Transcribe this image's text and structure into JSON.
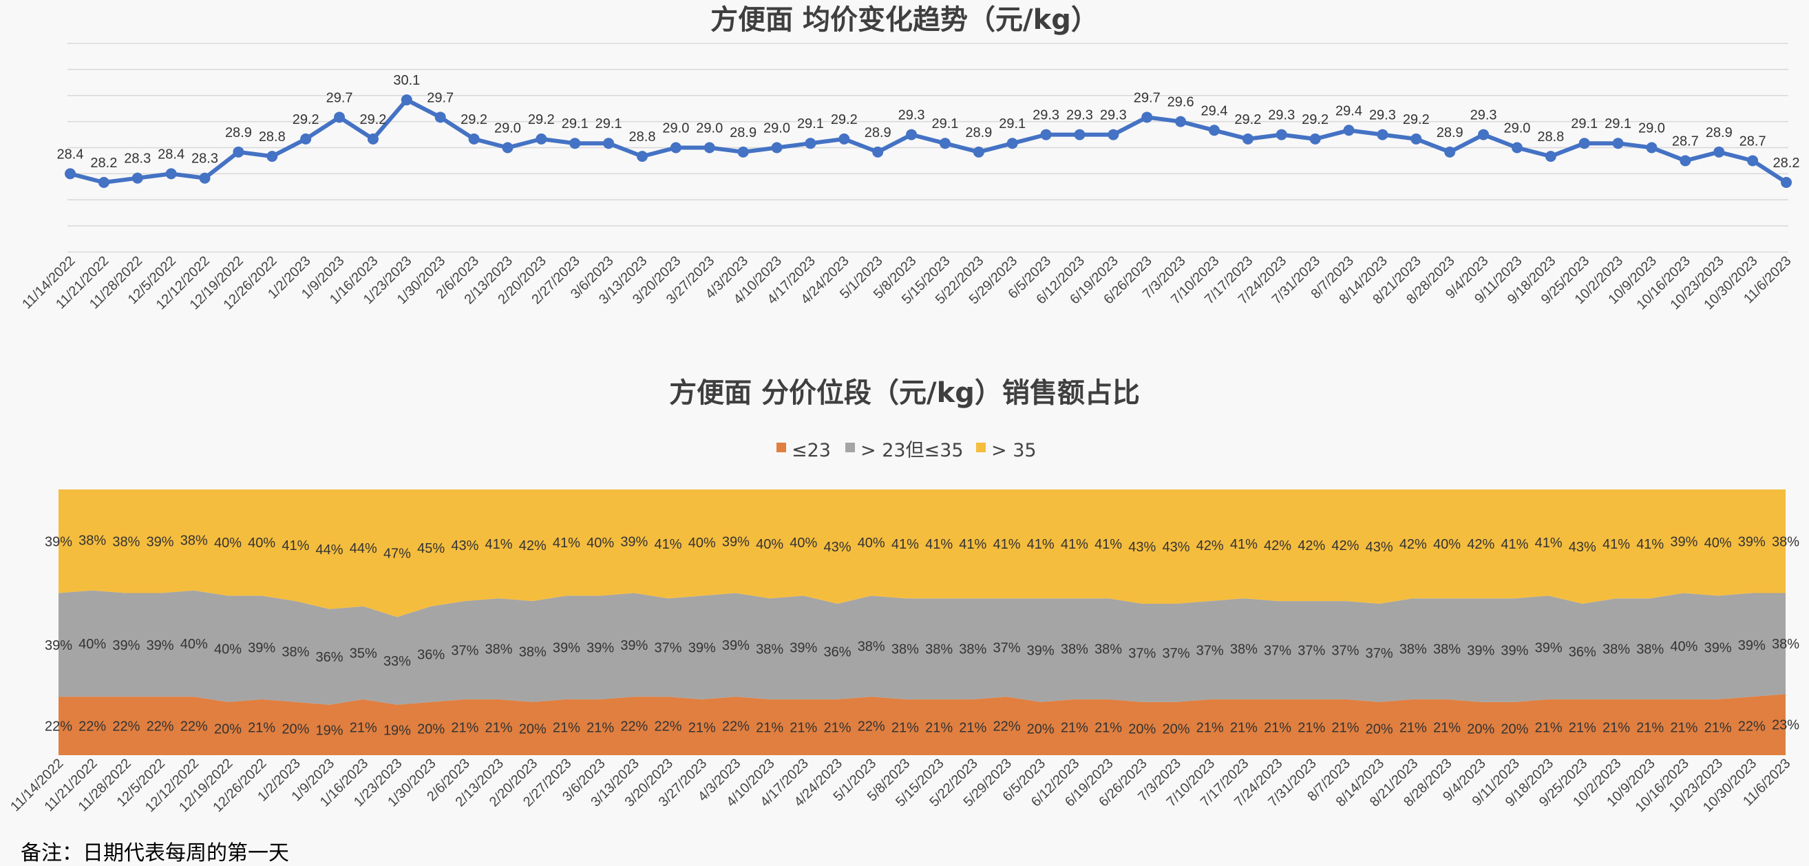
{
  "note": "备注：日期代表每周的第一天",
  "chart_data": [
    {
      "type": "line",
      "title": "方便面 均价变化趋势（元/kg）",
      "x": [
        "11/14/2022",
        "11/21/2022",
        "11/28/2022",
        "12/5/2022",
        "12/12/2022",
        "12/19/2022",
        "12/26/2022",
        "1/2/2023",
        "1/9/2023",
        "1/16/2023",
        "1/23/2023",
        "1/30/2023",
        "2/6/2023",
        "2/13/2023",
        "2/20/2023",
        "2/27/2023",
        "3/6/2023",
        "3/13/2023",
        "3/20/2023",
        "3/27/2023",
        "4/3/2023",
        "4/10/2023",
        "4/17/2023",
        "4/24/2023",
        "5/1/2023",
        "5/8/2023",
        "5/15/2023",
        "5/22/2023",
        "5/29/2023",
        "6/5/2023",
        "6/12/2023",
        "6/19/2023",
        "6/26/2023",
        "7/3/2023",
        "7/10/2023",
        "7/17/2023",
        "7/24/2023",
        "7/31/2023",
        "8/7/2023",
        "8/14/2023",
        "8/21/2023",
        "8/28/2023",
        "9/4/2023",
        "9/11/2023",
        "9/18/2023",
        "9/25/2023",
        "10/2/2023",
        "10/9/2023",
        "10/16/2023",
        "10/23/2023",
        "10/30/2023",
        "11/6/2023"
      ],
      "values": [
        28.4,
        28.2,
        28.3,
        28.4,
        28.3,
        28.9,
        28.8,
        29.2,
        29.7,
        29.2,
        30.1,
        29.7,
        29.2,
        29.0,
        29.2,
        29.1,
        29.1,
        28.8,
        29.0,
        29.0,
        28.9,
        29.0,
        29.1,
        29.2,
        28.9,
        29.3,
        29.1,
        28.9,
        29.1,
        29.3,
        29.3,
        29.3,
        29.7,
        29.6,
        29.4,
        29.2,
        29.3,
        29.2,
        29.4,
        29.3,
        29.2,
        28.9,
        29.3,
        29.0,
        28.8,
        29.1,
        29.1,
        29.0,
        28.7,
        28.9,
        28.7,
        28.2
      ],
      "ylim": [
        26.6,
        31.4
      ],
      "grid": true,
      "color": "#4472c4"
    },
    {
      "type": "area",
      "stacked": "percent",
      "title": "方便面 分价位段（元/kg）销售额占比",
      "legend_position": "top",
      "series": [
        {
          "name": "≤23",
          "color": "#e07f40",
          "values": [
            22,
            22,
            22,
            22,
            22,
            20,
            21,
            20,
            19,
            21,
            19,
            20,
            21,
            21,
            20,
            21,
            21,
            22,
            22,
            21,
            22,
            21,
            21,
            21,
            22,
            21,
            21,
            21,
            22,
            20,
            21,
            21,
            20,
            20,
            21,
            21,
            21,
            21,
            21,
            20,
            21,
            21,
            20,
            20,
            21,
            21,
            21,
            21,
            21,
            21,
            22,
            23
          ]
        },
        {
          "name": "> 23但≤35",
          "color": "#a5a5a5",
          "values": [
            39,
            40,
            39,
            39,
            40,
            40,
            39,
            38,
            36,
            35,
            33,
            36,
            37,
            38,
            38,
            39,
            39,
            39,
            37,
            39,
            39,
            38,
            39,
            36,
            38,
            38,
            38,
            38,
            37,
            39,
            38,
            38,
            37,
            37,
            37,
            38,
            37,
            37,
            37,
            37,
            38,
            38,
            39,
            39,
            39,
            36,
            38,
            38,
            40,
            39,
            39,
            38
          ]
        },
        {
          "name": "> 35",
          "color": "#f5bd3e",
          "values": [
            39,
            38,
            38,
            39,
            38,
            40,
            40,
            41,
            44,
            44,
            47,
            45,
            43,
            41,
            42,
            41,
            40,
            39,
            41,
            40,
            39,
            40,
            40,
            43,
            40,
            41,
            41,
            41,
            41,
            41,
            41,
            41,
            43,
            43,
            42,
            41,
            42,
            42,
            42,
            43,
            42,
            40,
            42,
            41,
            41,
            43,
            41,
            41,
            39,
            40,
            39,
            38
          ]
        }
      ],
      "value_suffix": "%"
    }
  ]
}
